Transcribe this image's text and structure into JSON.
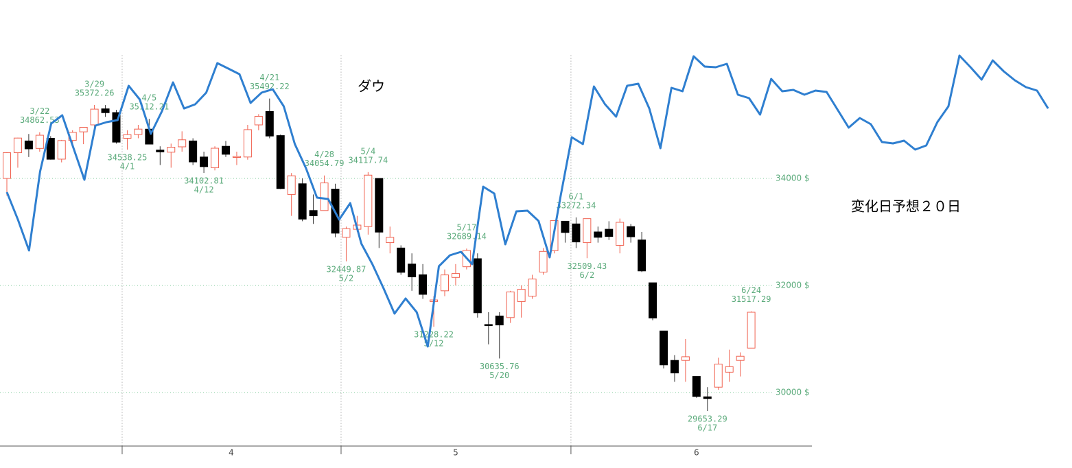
{
  "chart_data": {
    "type": "candlestick",
    "title": "ダウ",
    "months": [
      "4",
      "5",
      "6"
    ],
    "ylim": [
      29000,
      36300
    ],
    "yticks": [
      {
        "value": 30000,
        "label": "30000 $"
      },
      {
        "value": 32000,
        "label": "32000 $"
      },
      {
        "value": 34000,
        "label": "34000 $"
      }
    ],
    "grid": true,
    "up_color": "#f0614f",
    "down_color": "#000000",
    "open": [
      34000,
      34480,
      34700,
      34560,
      34750,
      34360,
      34710,
      34870,
      35000,
      35300,
      35230,
      34750,
      34820,
      34920,
      34530,
      34490,
      34590,
      34700,
      34400,
      34200,
      34600,
      34400,
      34400,
      35000,
      35250,
      34800,
      33700,
      33900,
      33400,
      33400,
      33800,
      32900,
      33050,
      33100,
      34000,
      32800,
      32700,
      32400,
      32200,
      31700,
      31900,
      32150,
      32350,
      32500,
      31270,
      31430,
      31400,
      31700,
      31800,
      32250,
      32650,
      33200,
      33150,
      32800,
      33000,
      33050,
      32750,
      33100,
      32850,
      32050,
      31150,
      30600,
      30600,
      30300,
      29920,
      30100,
      30380,
      30600,
      30830
    ],
    "high": [
      34490,
      34760,
      34830,
      34862.53,
      34790,
      34720,
      34900,
      34960,
      35372.26,
      35370,
      35280,
      34900,
      35000,
      35112.21,
      34600,
      34650,
      34880,
      34750,
      34500,
      34600,
      34700,
      34500,
      35000,
      35200,
      35492.22,
      34820,
      34100,
      34000,
      33700,
      34054.79,
      33900,
      33100,
      33300,
      34117.74,
      34000,
      33100,
      32750,
      32600,
      32400,
      31800,
      32300,
      32400,
      32689.14,
      32600,
      31500,
      31500,
      31900,
      32000,
      32200,
      32700,
      33220,
      33200,
      33272.34,
      33250,
      33100,
      33200,
      33250,
      33150,
      33000,
      32050,
      31150,
      30700,
      31000,
      30300,
      30100,
      30650,
      30800,
      30750,
      31517.29
    ],
    "low": [
      33680,
      34200,
      34400,
      34500,
      34350,
      34300,
      34600,
      34640,
      34950,
      35150,
      34650,
      34538.25,
      34750,
      34641,
      34250,
      34200,
      34500,
      34250,
      34102.81,
      34150,
      34400,
      34250,
      34350,
      34900,
      34750,
      33800,
      33300,
      33200,
      33150,
      33400,
      32900,
      32449.87,
      33000,
      32950,
      32700,
      32600,
      32200,
      31900,
      31750,
      31228.22,
      31800,
      32000,
      32300,
      31400,
      30900,
      30635.76,
      31300,
      31400,
      31750,
      32200,
      32600,
      32800,
      32700,
      32509.43,
      32800,
      32850,
      32600,
      32800,
      32250,
      31350,
      30450,
      30200,
      30200,
      29900,
      29653.29,
      30050,
      30200,
      30300,
      30830
    ],
    "close": [
      34480,
      34754,
      34552,
      34807,
      34358,
      34707,
      34861,
      34955,
      35294,
      35228,
      34678,
      34818,
      34921,
      34641,
      34496,
      34583,
      34721,
      34308,
      34220,
      34564,
      34451,
      34411,
      34911,
      35160,
      34792,
      33811,
      34049,
      33240,
      33301,
      33916,
      32977,
      33061,
      33128,
      34061,
      32997,
      32899,
      32246,
      32160,
      31834,
      31730,
      32197,
      32223,
      32655,
      31490,
      31253,
      31262,
      31880,
      31928,
      32120,
      32637,
      33212,
      32990,
      32813,
      33248,
      32900,
      32915,
      33180,
      32910,
      32272,
      31392,
      30516,
      30365,
      30668,
      29927,
      29888,
      30530,
      30483,
      30677,
      31500
    ],
    "annotations": [
      {
        "date": "3/22",
        "value": 34862.53
      },
      {
        "date": "3/29",
        "value": 35372.26
      },
      {
        "date": "4/1",
        "value": 34538.25
      },
      {
        "date": "4/5",
        "value": 35112.21
      },
      {
        "date": "4/12",
        "value": 34102.81
      },
      {
        "date": "4/21",
        "value": 35492.22
      },
      {
        "date": "4/28",
        "value": 34054.79
      },
      {
        "date": "5/2",
        "value": 32449.87
      },
      {
        "date": "5/4",
        "value": 34117.74
      },
      {
        "date": "5/12",
        "value": 31228.22
      },
      {
        "date": "5/17",
        "value": 32689.14
      },
      {
        "date": "5/20",
        "value": 30635.76
      },
      {
        "date": "6/1",
        "value": 33272.34
      },
      {
        "date": "6/2",
        "value": 32509.43
      },
      {
        "date": "6/17",
        "value": 29653.29
      },
      {
        "date": "6/24",
        "value": 31517.29
      }
    ],
    "line": {
      "name": "変化日予想２０日",
      "color": "#2f7fd0",
      "values": [
        33743,
        33231,
        32654,
        34128,
        35025,
        35179,
        34577,
        33974,
        34987,
        35051,
        35090,
        35731,
        35474,
        34833,
        35256,
        35795,
        35307,
        35384,
        35602,
        36154,
        36051,
        35948,
        35410,
        35602,
        35666,
        35346,
        34641,
        34192,
        33641,
        33615,
        33231,
        33538,
        32782,
        32397,
        31949,
        31474,
        31756,
        31500,
        30859,
        32359,
        32564,
        32628,
        32397,
        33846,
        33718,
        32769,
        33384,
        33397,
        33205,
        32526,
        33679,
        34769,
        34641,
        35718,
        35384,
        35154,
        35731,
        35769,
        35307,
        34564,
        35692,
        35628,
        36282,
        36090,
        36077,
        36141,
        35564,
        35500,
        35192,
        35859,
        35628,
        35654,
        35564,
        35641,
        35615,
        35282,
        34949,
        35128,
        35013,
        34679,
        34654,
        34705,
        34538,
        34615,
        35051,
        35346,
        36295,
        36077,
        35846,
        36205,
        36000,
        35833,
        35705,
        35641,
        35307
      ]
    }
  }
}
